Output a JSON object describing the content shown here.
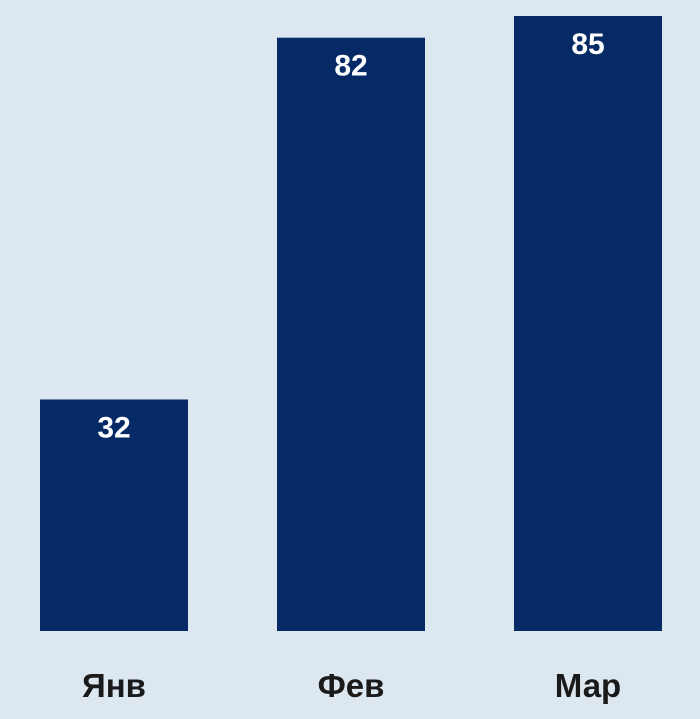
{
  "colors": {
    "background": "#dde7f0",
    "bar": "#062a66",
    "bar_label": "#ffffff",
    "tick_label": "#1a1a1a"
  },
  "chart_data": {
    "type": "bar",
    "categories": [
      "Янв",
      "Фев",
      "Мар"
    ],
    "values": [
      32,
      82,
      85
    ],
    "data_labels": [
      "32",
      "82",
      "85"
    ],
    "ylim": [
      0,
      85
    ],
    "grid": false,
    "legend": "none"
  }
}
